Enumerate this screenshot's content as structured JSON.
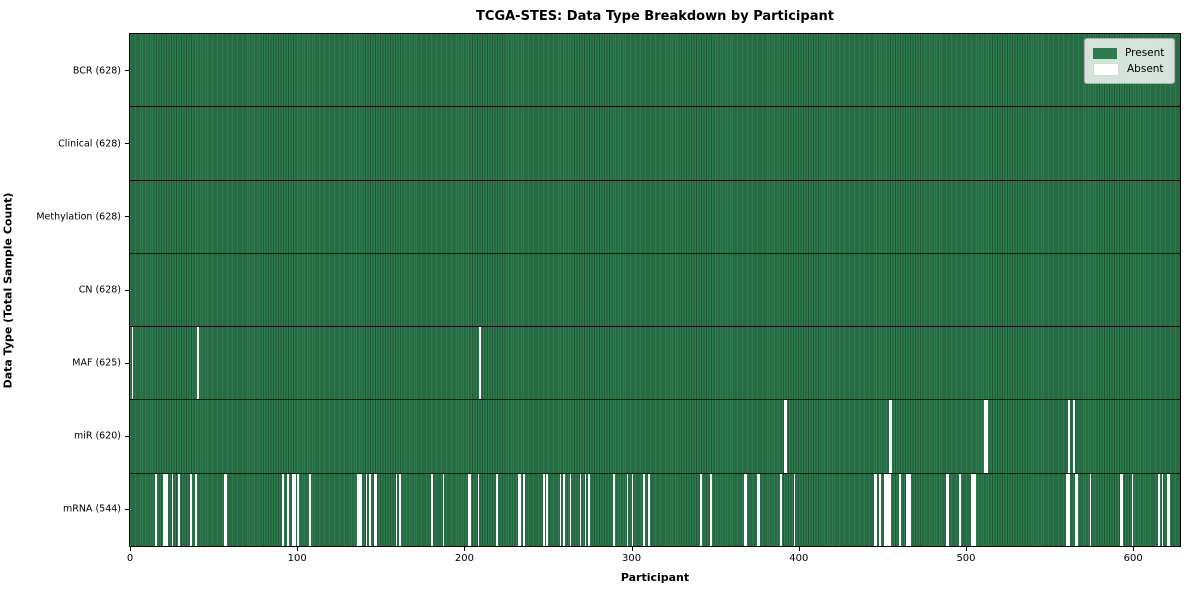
{
  "title": "TCGA-STES: Data Type Breakdown by Participant",
  "xlabel": "Participant",
  "ylabel": "Data Type (Total Sample Count)",
  "legend": {
    "items": [
      {
        "label": "Present",
        "swatch": "present"
      },
      {
        "label": "Absent",
        "swatch": "absent"
      }
    ]
  },
  "colors": {
    "present": "#2e7c4e",
    "present_edge": "#1f5a38",
    "absent": "#ffffff",
    "row_divider": "#0d0d0d",
    "axis": "#000000",
    "legend_bg": "rgba(255,255,255,0.8)",
    "legend_border": "#b0b0b0"
  },
  "chart_data": {
    "type": "heatmap",
    "title": "TCGA-STES: Data Type Breakdown by Participant",
    "xlabel": "Participant",
    "ylabel": "Data Type (Total Sample Count)",
    "legend_entries": [
      "Present",
      "Absent"
    ],
    "legend_position": "upper right",
    "n_participants": 628,
    "xlim": [
      0,
      628
    ],
    "x_ticks": [
      0,
      100,
      200,
      300,
      400,
      500,
      600
    ],
    "grid": false,
    "cell_states": {
      "present_color": "#2e7c4e",
      "absent_color": "#ffffff"
    },
    "rows": [
      {
        "label": "BCR (628)",
        "data_type": "BCR",
        "present_count": 628,
        "absent_count": 0,
        "absent_indices": []
      },
      {
        "label": "Clinical (628)",
        "data_type": "Clinical",
        "present_count": 628,
        "absent_count": 0,
        "absent_indices": []
      },
      {
        "label": "Methylation (628)",
        "data_type": "Methylation",
        "present_count": 628,
        "absent_count": 0,
        "absent_indices": []
      },
      {
        "label": "CN (628)",
        "data_type": "CN",
        "present_count": 628,
        "absent_count": 0,
        "absent_indices": []
      },
      {
        "label": "MAF (625)",
        "data_type": "MAF",
        "present_count": 625,
        "absent_count": 3,
        "absent_indices": [
          1,
          40,
          209
        ]
      },
      {
        "label": "miR (620)",
        "data_type": "miR",
        "present_count": 620,
        "absent_count": 8,
        "absent_indices": [
          391,
          392,
          454,
          455,
          511,
          512,
          561,
          564
        ]
      },
      {
        "label": "mRNA (544)",
        "data_type": "mRNA",
        "present_count": 544,
        "absent_count": 84,
        "absent_indices": [
          15,
          20,
          21,
          22,
          25,
          29,
          36,
          39,
          56,
          57,
          91,
          94,
          97,
          98,
          100,
          107,
          136,
          137,
          138,
          141,
          143,
          146,
          147,
          159,
          161,
          180,
          187,
          202,
          203,
          208,
          219,
          232,
          233,
          235,
          247,
          249,
          257,
          259,
          263,
          269,
          272,
          274,
          289,
          297,
          300,
          307,
          310,
          341,
          347,
          367,
          368,
          375,
          376,
          389,
          397,
          445,
          446,
          448,
          451,
          452,
          453,
          454,
          460,
          464,
          465,
          466,
          488,
          489,
          496,
          503,
          504,
          505,
          560,
          561,
          565,
          566,
          574,
          592,
          593,
          599,
          615,
          617,
          620,
          621
        ]
      }
    ]
  }
}
